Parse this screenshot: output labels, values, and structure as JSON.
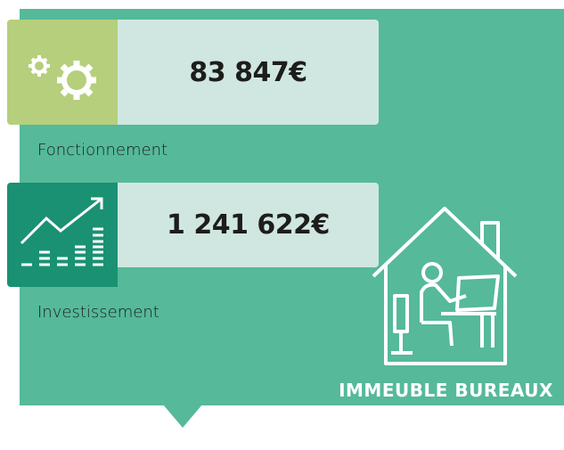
{
  "cards": [
    {
      "amount": "83 847€",
      "label": "Fonctionnement"
    },
    {
      "amount": "1 241 622€",
      "label": "Investissement"
    }
  ],
  "badge": "IMMEUBLE BUREAUX"
}
